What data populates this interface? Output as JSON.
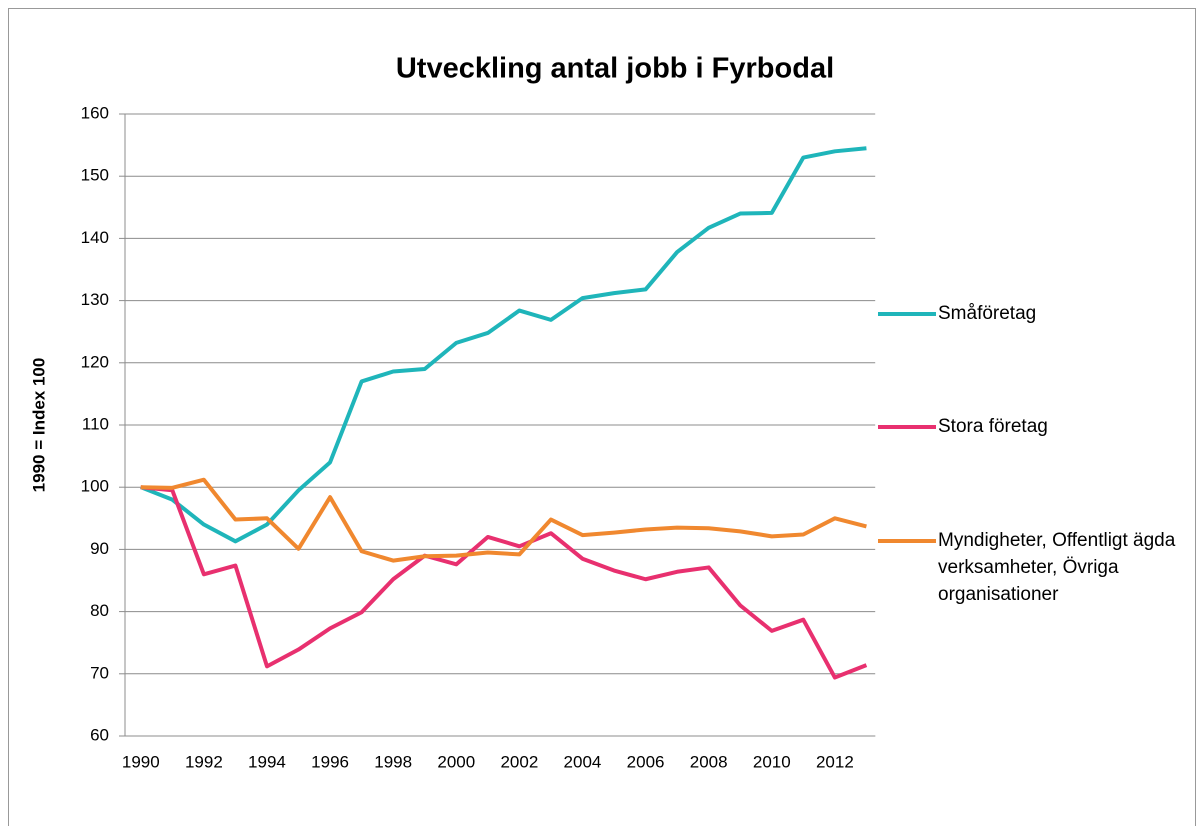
{
  "chart_data": {
    "type": "line",
    "title": "Utveckling antal jobb i Fyrbodal",
    "y_label": "1990 = Index 100",
    "categories": [
      1990,
      null,
      1992,
      null,
      1994,
      null,
      1996,
      null,
      1998,
      null,
      2000,
      null,
      2002,
      null,
      2004,
      null,
      2006,
      null,
      2008,
      null,
      2010,
      null,
      2012,
      null
    ],
    "series": [
      {
        "name": "Småföretag",
        "color": "#1fb5ba",
        "values": [
          100,
          98,
          94,
          91.3,
          94,
          99.5,
          104,
          117,
          118.6,
          119,
          123.2,
          124.8,
          128.4,
          126.9,
          130.4,
          131.2,
          131.8,
          137.8,
          141.7,
          144,
          144.1,
          153,
          154,
          154.5
        ]
      },
      {
        "name": "Stora företag",
        "color": "#e8306f",
        "values": [
          100,
          99.5,
          86,
          87.4,
          71.2,
          73.9,
          77.3,
          79.9,
          85.2,
          89,
          87.6,
          92,
          90.5,
          92.6,
          88.5,
          86.6,
          85.2,
          86.4,
          87.1,
          81,
          76.9,
          78.7,
          69.4,
          71.4
        ]
      },
      {
        "name": "Myndigheter, Offentligt ägda verksamheter, Övriga organisationer",
        "color": "#f0882f",
        "values": [
          100,
          99.9,
          101.2,
          94.8,
          95,
          90.1,
          98.4,
          89.7,
          88.2,
          88.9,
          89,
          89.5,
          89.2,
          94.8,
          92.3,
          92.7,
          93.2,
          93.5,
          93.4,
          92.9,
          92.1,
          92.4,
          95,
          93.7
        ]
      }
    ],
    "ylim": [
      60,
      160
    ],
    "yticks": [
      60,
      70,
      80,
      90,
      100,
      110,
      120,
      130,
      140,
      150,
      160
    ],
    "grid": true
  }
}
